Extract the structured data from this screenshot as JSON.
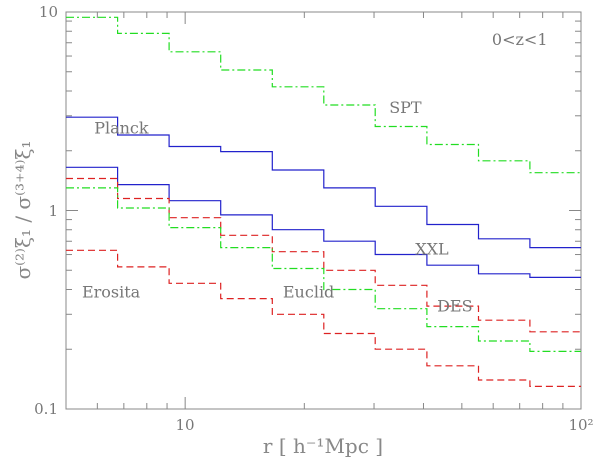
{
  "chart_data": {
    "type": "line",
    "step": true,
    "xscale": "log",
    "yscale": "log",
    "xlim": [
      5,
      100
    ],
    "ylim": [
      0.1,
      10
    ],
    "xlabel": "r  [  h⁻¹Mpc  ]",
    "ylabel": "σ⁽²⁾ξ₁ / σ⁽³⁺⁴⁾ξ₁",
    "x_tick_labels": [
      {
        "value": 10,
        "label": "10"
      },
      {
        "value": 100,
        "label": "10²"
      }
    ],
    "y_tick_labels": [
      {
        "value": 10,
        "label": "10"
      },
      {
        "value": 1,
        "label": "1"
      },
      {
        "value": 0.1,
        "label": "0.1"
      }
    ],
    "bin_edges": [
      5,
      6.75,
      9.11,
      12.3,
      16.6,
      22.4,
      30.2,
      40.8,
      55.1,
      74.3,
      100
    ],
    "series": [
      {
        "name": "SPT",
        "color": "#22dd22",
        "style": "dash-dot",
        "values": [
          9.4,
          7.8,
          6.3,
          5.1,
          4.2,
          3.4,
          2.65,
          2.15,
          1.78,
          1.55
        ]
      },
      {
        "name": "Planck",
        "color": "#2222cc",
        "style": "solid",
        "values": [
          2.95,
          2.4,
          2.1,
          1.98,
          1.6,
          1.3,
          1.05,
          0.85,
          0.72,
          0.65
        ]
      },
      {
        "name": "XXL",
        "color": "#2222cc",
        "style": "solid",
        "values": [
          1.65,
          1.35,
          1.12,
          0.95,
          0.8,
          0.7,
          0.6,
          0.53,
          0.48,
          0.46
        ]
      },
      {
        "name": "Euclid",
        "color": "#dd2222",
        "style": "dashed",
        "values": [
          1.45,
          1.15,
          0.92,
          0.75,
          0.62,
          0.5,
          0.42,
          0.33,
          0.28,
          0.245
        ]
      },
      {
        "name": "DES",
        "color": "#22dd22",
        "style": "dash-dot",
        "values": [
          1.3,
          1.03,
          0.82,
          0.65,
          0.51,
          0.4,
          0.32,
          0.26,
          0.22,
          0.195
        ]
      },
      {
        "name": "Erosita",
        "color": "#dd2222",
        "style": "dashed",
        "values": [
          0.63,
          0.52,
          0.43,
          0.36,
          0.3,
          0.24,
          0.2,
          0.165,
          0.14,
          0.13
        ]
      }
    ],
    "annotations": [
      {
        "text": "0<z<1",
        "x": 70,
        "y": 6.8
      },
      {
        "text": "SPT",
        "x": 36,
        "y": 3.1
      },
      {
        "text": "Planck",
        "x": 6.9,
        "y": 2.45
      },
      {
        "text": "XXL",
        "x": 42,
        "y": 0.6
      },
      {
        "text": "Euclid",
        "x": 20.5,
        "y": 0.365
      },
      {
        "text": "DES",
        "x": 48,
        "y": 0.31
      },
      {
        "text": "Erosita",
        "x": 6.5,
        "y": 0.365
      }
    ]
  }
}
